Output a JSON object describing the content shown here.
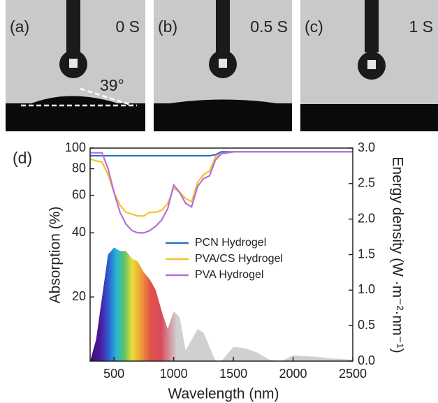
{
  "photos": [
    {
      "label": "(a)",
      "time": "0 S"
    },
    {
      "label": "(b)",
      "time": "0.5 S"
    },
    {
      "label": "(c)",
      "time": "1 S"
    }
  ],
  "angle_label": "39°",
  "chart_data": {
    "type": "line",
    "panel_label": "(d)",
    "x_label": "Wavelength (nm)",
    "y_label": "Absorption (%)",
    "y2_label": "Energy density (W ·m⁻²·nm⁻¹)",
    "x": [
      300,
      350,
      400,
      450,
      500,
      550,
      600,
      650,
      700,
      750,
      800,
      850,
      900,
      950,
      1000,
      1050,
      1100,
      1150,
      1200,
      1250,
      1300,
      1350,
      1400,
      1500,
      1600,
      1700,
      1800,
      1900,
      2000,
      2100,
      2200,
      2300,
      2400,
      2500
    ],
    "xlim": [
      300,
      2500
    ],
    "xticks": [
      500,
      1000,
      1500,
      2000,
      2500
    ],
    "ylim": [
      10,
      100
    ],
    "y_scale": "log",
    "yticks": [
      20,
      40,
      60,
      80,
      100
    ],
    "y2lim": [
      0,
      3
    ],
    "y2ticks": [
      {
        "value": 0,
        "label": "0.0"
      },
      0.5,
      {
        "value": 1,
        "label": "1.0"
      },
      1.5,
      {
        "value": 2,
        "label": "2.0"
      },
      2.5,
      {
        "value": 3,
        "label": "3.0"
      }
    ],
    "legend": "center",
    "series": [
      {
        "name": "PCN Hydrogel",
        "color": "#2f6fc4",
        "values": [
          92,
          92,
          92,
          92,
          92,
          92,
          92,
          92,
          92,
          92,
          92,
          92,
          92,
          92,
          92,
          92,
          92,
          92,
          92,
          92,
          92,
          93,
          96,
          96,
          96,
          96,
          96,
          96,
          96,
          96,
          96,
          96,
          96,
          96
        ]
      },
      {
        "name": "PVA/CS Hydrogel",
        "color": "#f5c32c",
        "values": [
          89,
          87,
          86,
          75,
          62,
          54,
          50,
          49,
          48,
          48,
          50,
          50,
          51,
          55,
          65,
          62,
          58,
          56,
          69,
          75,
          78,
          91,
          94,
          96,
          96,
          96,
          96,
          96,
          96,
          96,
          96,
          96,
          96,
          96
        ]
      },
      {
        "name": "PVA Hydrogel",
        "color": "#b46fe0",
        "values": [
          95,
          95,
          95,
          80,
          62,
          50,
          44,
          41,
          40,
          40,
          41,
          43,
          46,
          52,
          67,
          62,
          55,
          53,
          66,
          72,
          74,
          88,
          94,
          96,
          96,
          96,
          96,
          96,
          96,
          96,
          96,
          96,
          96,
          96
        ]
      }
    ],
    "spectrum": {
      "axis": "y2",
      "values": [
        0,
        0.3,
        0.9,
        1.5,
        1.6,
        1.55,
        1.55,
        1.45,
        1.4,
        1.25,
        1.15,
        1.0,
        0.7,
        0.45,
        0.7,
        0.62,
        0.15,
        0.3,
        0.45,
        0.4,
        0.2,
        0,
        0,
        0.2,
        0.18,
        0.12,
        0.02,
        0,
        0.08,
        0.07,
        0.06,
        0.04,
        0.03,
        0.02
      ]
    }
  }
}
